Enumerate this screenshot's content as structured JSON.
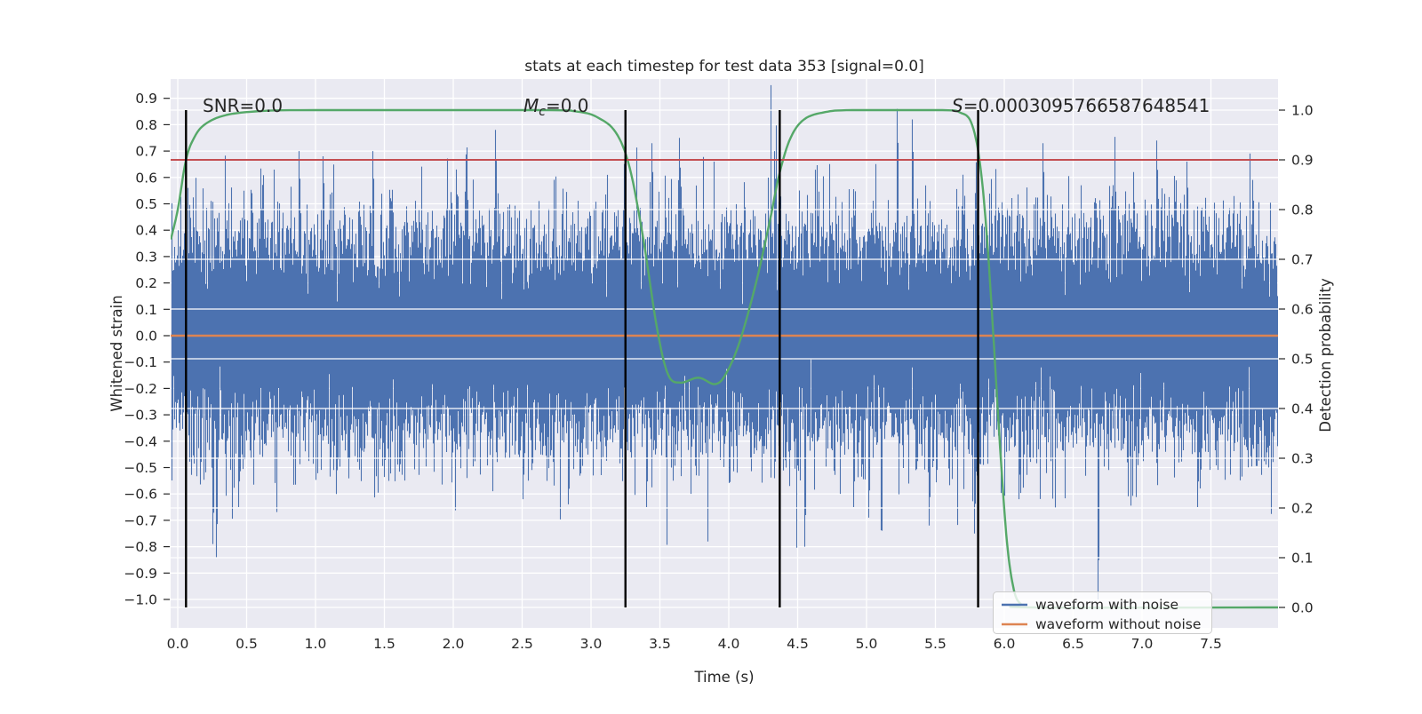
{
  "title": "stats at each timestep for test data 353 [signal=0.0]",
  "annotations": {
    "snr": "SNR=0.0",
    "mc_m": "M",
    "mc_sub": "c",
    "mc_rest": "=0.0",
    "s_var": "S",
    "s_rest": "=0.0003095766587648541"
  },
  "axes": {
    "x": {
      "label": "Time (s)",
      "tick_labels": [
        "0.0",
        "0.5",
        "1.0",
        "1.5",
        "2.0",
        "2.5",
        "3.0",
        "3.5",
        "4.0",
        "4.5",
        "5.0",
        "5.5",
        "6.0",
        "6.5",
        "7.0",
        "7.5"
      ],
      "limits": [
        -0.05,
        8.0
      ]
    },
    "y_left": {
      "label": "Whitened strain",
      "tick_labels": [
        "0.9",
        "0.8",
        "0.7",
        "0.6",
        "0.5",
        "0.4",
        "0.3",
        "0.2",
        "0.1",
        "0.0",
        "−0.1",
        "−0.2",
        "−0.3",
        "−0.4",
        "−0.5",
        "−0.6",
        "−0.7",
        "−0.8",
        "−0.9",
        "−1.0"
      ],
      "limits": [
        -1.11,
        0.97
      ]
    },
    "y_right": {
      "label": "Detection probability",
      "tick_labels": [
        "1.0",
        "0.9",
        "0.8",
        "0.7",
        "0.6",
        "0.5",
        "0.4",
        "0.3",
        "0.2",
        "0.1",
        "0.0"
      ],
      "limits": [
        -0.042,
        1.062
      ]
    }
  },
  "legend": {
    "items": [
      {
        "label": "waveform with noise",
        "color": "#4C72B0"
      },
      {
        "label": "waveform without noise",
        "color": "#DD8452"
      }
    ]
  },
  "colors": {
    "figure_bg": "#ffffff",
    "plot_bg": "#EAEAF2",
    "grid": "#ffffff",
    "noise_blue": "#4C72B0",
    "clean_orange": "#DD8452",
    "detection_green": "#55A868",
    "threshold_red": "#C44E52",
    "event_black": "#000000",
    "text": "#262626",
    "legend_bg": "rgba(255,255,255,0.8)",
    "legend_edge": "#cccccc"
  },
  "chart_data": {
    "type": "line",
    "title": "stats at each timestep for test data 353 [signal=0.0]",
    "xlabel": "Time (s)",
    "ylabel_left": "Whitened strain",
    "ylabel_right": "Detection probability",
    "x_range": [
      -0.05,
      8.0
    ],
    "y_left_range": [
      -1.11,
      0.97
    ],
    "y_right_range": [
      -0.042,
      1.062
    ],
    "grid": "white gridlines on both axes (seaborn darkgrid)",
    "legend_position": "lower right",
    "series": [
      {
        "name": "waveform with noise",
        "axis": "left",
        "color": "#4C72B0",
        "kind": "gaussian-noise-envelope",
        "mean": 0.0,
        "sigma": 0.2,
        "samples_per_pixel": 20,
        "seed": 353,
        "t_span": [
          0.0,
          8.0
        ],
        "core_band": [
          -0.27,
          0.27
        ],
        "notable_spikes": [
          {
            "t": 0.25,
            "v": -0.79
          },
          {
            "t": 0.28,
            "v": -0.84
          },
          {
            "t": 0.44,
            "v": -0.65
          },
          {
            "t": 0.88,
            "v": 0.7
          },
          {
            "t": 1.05,
            "v": 0.68
          },
          {
            "t": 1.15,
            "v": -0.6
          },
          {
            "t": 1.41,
            "v": 0.7
          },
          {
            "t": 2.02,
            "v": 0.63
          },
          {
            "t": 2.3,
            "v": 0.78
          },
          {
            "t": 2.5,
            "v": -0.62
          },
          {
            "t": 3.4,
            "v": -0.65
          },
          {
            "t": 3.44,
            "v": 0.73
          },
          {
            "t": 3.64,
            "v": 0.75
          },
          {
            "t": 4.33,
            "v": 0.7
          },
          {
            "t": 4.55,
            "v": -0.8
          },
          {
            "t": 4.9,
            "v": -0.65
          },
          {
            "t": 5.01,
            "v": -0.69
          },
          {
            "t": 5.22,
            "v": 0.86
          },
          {
            "t": 5.33,
            "v": 0.82
          },
          {
            "t": 5.45,
            "v": -0.72
          },
          {
            "t": 5.78,
            "v": -0.75
          },
          {
            "t": 6.1,
            "v": -0.62
          },
          {
            "t": 6.28,
            "v": 0.73
          },
          {
            "t": 6.68,
            "v": -1.0
          },
          {
            "t": 7.1,
            "v": 0.74
          },
          {
            "t": 7.32,
            "v": 0.66
          },
          {
            "t": 7.4,
            "v": -0.65
          }
        ]
      },
      {
        "name": "waveform without noise",
        "axis": "left",
        "color": "#DD8452",
        "kind": "constant",
        "value": 0.0
      },
      {
        "name": "detection probability",
        "axis": "right",
        "color": "#55A868",
        "kind": "curve",
        "keypoints": [
          [
            -0.05,
            0.74
          ],
          [
            0.0,
            0.8
          ],
          [
            0.06,
            0.9
          ],
          [
            0.12,
            0.945
          ],
          [
            0.2,
            0.972
          ],
          [
            0.35,
            0.99
          ],
          [
            0.6,
            0.998
          ],
          [
            1.0,
            1.0
          ],
          [
            2.6,
            1.0
          ],
          [
            2.9,
            0.997
          ],
          [
            3.05,
            0.985
          ],
          [
            3.18,
            0.955
          ],
          [
            3.28,
            0.885
          ],
          [
            3.38,
            0.74
          ],
          [
            3.48,
            0.56
          ],
          [
            3.56,
            0.468
          ],
          [
            3.65,
            0.452
          ],
          [
            3.78,
            0.462
          ],
          [
            3.9,
            0.449
          ],
          [
            3.98,
            0.47
          ],
          [
            4.08,
            0.535
          ],
          [
            4.2,
            0.655
          ],
          [
            4.3,
            0.78
          ],
          [
            4.37,
            0.875
          ],
          [
            4.45,
            0.945
          ],
          [
            4.55,
            0.982
          ],
          [
            4.7,
            0.996
          ],
          [
            4.9,
            1.0
          ],
          [
            5.55,
            1.0
          ],
          [
            5.68,
            0.995
          ],
          [
            5.76,
            0.975
          ],
          [
            5.82,
            0.9
          ],
          [
            5.87,
            0.76
          ],
          [
            5.92,
            0.55
          ],
          [
            5.97,
            0.32
          ],
          [
            6.02,
            0.13
          ],
          [
            6.07,
            0.035
          ],
          [
            6.12,
            0.007
          ],
          [
            6.2,
            0.0
          ],
          [
            7.99,
            0.0
          ]
        ]
      }
    ],
    "reference_lines": {
      "red_hline_right_axis": 0.9,
      "orange_hline_left_axis": 0.0,
      "black_vlines_t": [
        0.06,
        3.25,
        4.37,
        5.81
      ]
    }
  }
}
